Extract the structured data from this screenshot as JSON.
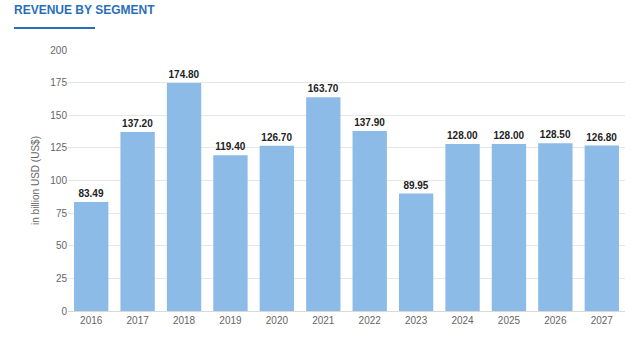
{
  "chart_data": {
    "type": "bar",
    "title": "REVENUE BY SEGMENT",
    "y_label": "in billion USD (US$)",
    "categories": [
      "2016",
      "2017",
      "2018",
      "2019",
      "2020",
      "2021",
      "2022",
      "2023",
      "2024",
      "2025",
      "2026",
      "2027"
    ],
    "values": [
      83.49,
      137.2,
      174.8,
      119.4,
      126.7,
      163.7,
      137.9,
      89.95,
      128,
      128,
      128.5,
      126.8
    ],
    "value_labels": [
      "83.49",
      "137.20",
      "174.80",
      "119.40",
      "126.70",
      "163.70",
      "137.90",
      "89.95",
      "128.00",
      "128.00",
      "128.50",
      "126.80"
    ],
    "color": "#8cbbe8",
    "ylim": [
      0,
      200
    ],
    "yticks": [
      0,
      25,
      50,
      75,
      100,
      125,
      150,
      175,
      200
    ],
    "grid": true,
    "data_labels": true
  }
}
